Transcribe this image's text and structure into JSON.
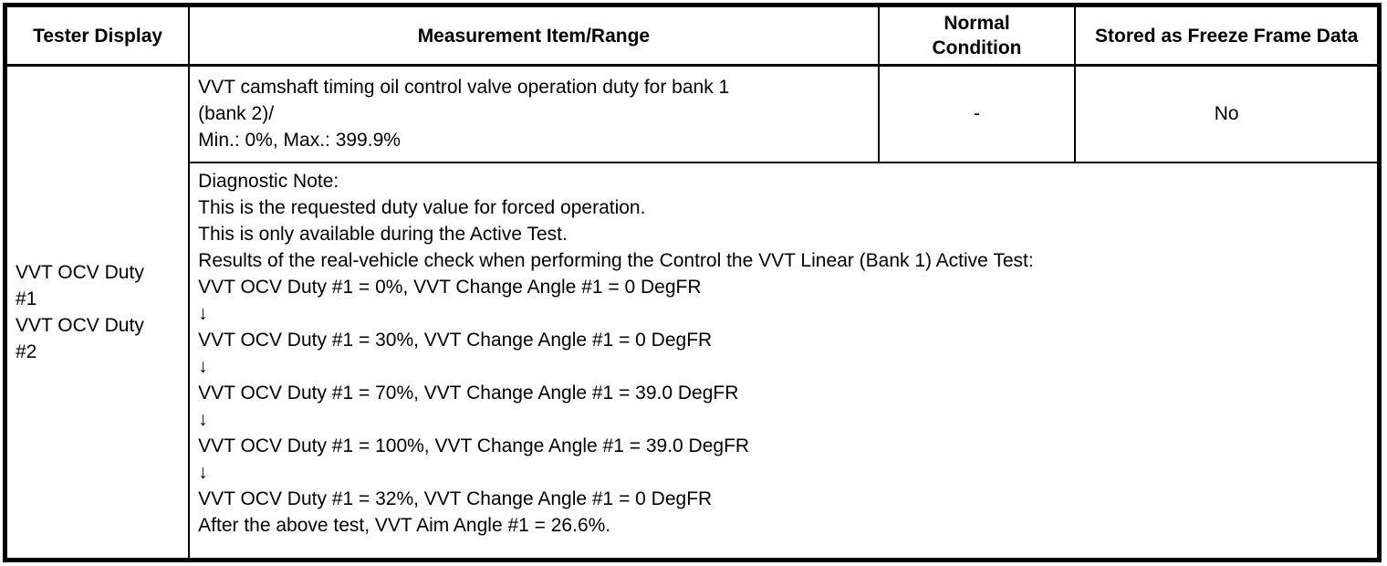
{
  "colors": {
    "border": "#000000",
    "text": "#000000",
    "background": "#ffffff"
  },
  "table": {
    "headers": [
      {
        "label": "Tester Display"
      },
      {
        "label": "Measurement Item/Range"
      },
      {
        "label": "Normal Condition"
      },
      {
        "label": "Stored as Freeze Frame Data"
      }
    ],
    "row": {
      "tester_display": {
        "items": [
          "VVT OCV Duty #1",
          "VVT OCV Duty #2"
        ]
      },
      "measurement": {
        "lines": [
          "VVT camshaft timing oil control valve operation duty for bank 1",
          "(bank 2)/",
          "Min.: 0%, Max.: 399.9%"
        ]
      },
      "normal_condition": "-",
      "stored_as_freeze_frame_data": "No",
      "diagnostic_note": {
        "lines": [
          "Diagnostic Note:",
          "This is the requested duty value for forced operation.",
          "This is only available during the Active Test.",
          "Results of the real-vehicle check when performing the Control the VVT Linear (Bank 1) Active Test:",
          "VVT OCV Duty #1 = 0%, VVT Change Angle #1 = 0 DegFR",
          "↓",
          "VVT OCV Duty #1 = 30%, VVT Change Angle #1 = 0 DegFR",
          "↓",
          "VVT OCV Duty #1 = 70%, VVT Change Angle #1 = 39.0 DegFR",
          "↓",
          "VVT OCV Duty #1 = 100%, VVT Change Angle #1 = 39.0 DegFR",
          "↓",
          "VVT OCV Duty #1 = 32%, VVT Change Angle #1 = 0 DegFR",
          "After the above test, VVT Aim Angle #1 = 26.6%."
        ]
      }
    }
  }
}
